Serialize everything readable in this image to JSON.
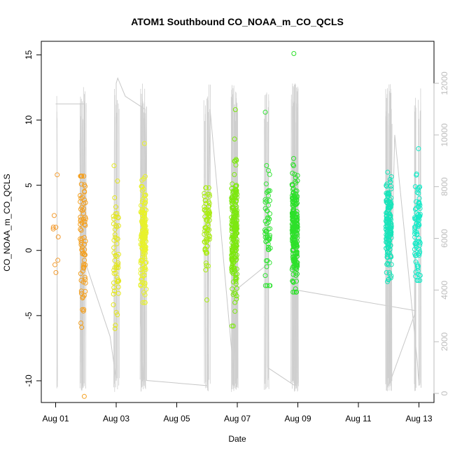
{
  "chart_data": {
    "type": "scatter",
    "title": "ATOM1 Southbound CO_NOAA_m_CO_QCLS",
    "xlabel": "Date",
    "ylabel": "CO_NOAA_m_CO_QCLS",
    "x_ticks": [
      "Aug 01",
      "Aug 03",
      "Aug 05",
      "Aug 07",
      "Aug 09",
      "Aug 11",
      "Aug 13"
    ],
    "xlim": [
      "2016-07-31 14:00",
      "2016-08-13 10:00"
    ],
    "ylim": [
      -11.8,
      16.2
    ],
    "y_ticks": [
      -10,
      -5,
      0,
      5,
      10,
      15
    ],
    "y_tick_labels": [
      "-10",
      "-5",
      "0",
      "5",
      "10",
      "15"
    ],
    "y2_label": "",
    "y2_ticks": [
      0,
      2000,
      4000,
      6000,
      8000,
      10000,
      12000
    ],
    "y2_tick_labels": [
      "0",
      "2000",
      "4000",
      "6000",
      "8000",
      "10000",
      "12000"
    ],
    "y2lim": [
      -300,
      13000
    ],
    "grid": false,
    "point_clusters": [
      {
        "day": 1.0,
        "n": 9,
        "mean": 1.7,
        "sd": 2.2,
        "ymin": -1.7,
        "ymax": 5.8,
        "color": "#f39c30"
      },
      {
        "day": 1.9,
        "n": 80,
        "mean": 1.0,
        "sd": 2.7,
        "ymin": -11.2,
        "ymax": 5.7,
        "color": "#f4a020"
      },
      {
        "day": 3.0,
        "n": 55,
        "mean": 0.3,
        "sd": 2.5,
        "ymin": -6.0,
        "ymax": 6.5,
        "color": "#e3e61f"
      },
      {
        "day": 3.9,
        "n": 150,
        "mean": 1.0,
        "sd": 2.0,
        "ymin": -4.0,
        "ymax": 8.2,
        "color": "#e8f22a"
      },
      {
        "day": 6.0,
        "n": 70,
        "mean": 1.5,
        "sd": 1.8,
        "ymin": -3.8,
        "ymax": 4.8,
        "color": "#a9ec12"
      },
      {
        "day": 6.9,
        "n": 220,
        "mean": 1.6,
        "sd": 2.2,
        "ymin": -5.8,
        "ymax": 10.8,
        "color": "#7de810"
      },
      {
        "day": 8.0,
        "n": 60,
        "mean": 1.6,
        "sd": 2.6,
        "ymin": -2.7,
        "ymax": 10.6,
        "color": "#33e335"
      },
      {
        "day": 8.9,
        "n": 220,
        "mean": 1.8,
        "sd": 2.2,
        "ymin": -3.2,
        "ymax": 15.1,
        "color": "#2de02a"
      },
      {
        "day": 12.0,
        "n": 170,
        "mean": 1.8,
        "sd": 1.8,
        "ymin": -2.4,
        "ymax": 6.0,
        "color": "#18e4ba"
      },
      {
        "day": 12.95,
        "n": 90,
        "mean": 1.7,
        "sd": 1.9,
        "ymin": -2.3,
        "ymax": 7.8,
        "color": "#19eac8"
      }
    ],
    "altitude_segments": [
      {
        "day": 1.0,
        "alt": 11200
      },
      {
        "day": 1.0,
        "alt": 11200
      },
      {
        "day": 1.97,
        "alt": 11200
      },
      {
        "day": 1.97,
        "alt": 5800
      },
      {
        "day": 1.85,
        "alt": 1200
      },
      {
        "day": 1.8,
        "alt": 9800
      },
      {
        "day": 1.9,
        "alt": 300
      },
      {
        "day": 1.95,
        "alt": 11300
      },
      {
        "day": 2.0,
        "alt": 5000
      },
      {
        "day": 2.8,
        "alt": 2200
      },
      {
        "day": 3.0,
        "alt": 500
      },
      {
        "day": 3.0,
        "alt": 12000
      },
      {
        "day": 3.05,
        "alt": 12200
      },
      {
        "day": 3.3,
        "alt": 11500
      },
      {
        "day": 3.95,
        "alt": 11000
      },
      {
        "day": 3.8,
        "alt": 3000
      },
      {
        "day": 3.9,
        "alt": 300
      },
      {
        "day": 4.0,
        "alt": 11100
      },
      {
        "day": 4.0,
        "alt": 500
      },
      {
        "day": 6.0,
        "alt": 300
      },
      {
        "day": 6.1,
        "alt": 11000
      },
      {
        "day": 6.9,
        "alt": 500
      },
      {
        "day": 6.95,
        "alt": 4000
      },
      {
        "day": 8.0,
        "alt": 5000
      },
      {
        "day": 8.0,
        "alt": 1000
      },
      {
        "day": 8.9,
        "alt": 300
      },
      {
        "day": 9.0,
        "alt": 10800
      },
      {
        "day": 8.95,
        "alt": 4000
      },
      {
        "day": 12.9,
        "alt": 3200
      },
      {
        "day": 12.0,
        "alt": 300
      },
      {
        "day": 12.2,
        "alt": 10000
      },
      {
        "day": 12.95,
        "alt": 1200
      },
      {
        "day": 13.0,
        "alt": 300
      }
    ]
  }
}
